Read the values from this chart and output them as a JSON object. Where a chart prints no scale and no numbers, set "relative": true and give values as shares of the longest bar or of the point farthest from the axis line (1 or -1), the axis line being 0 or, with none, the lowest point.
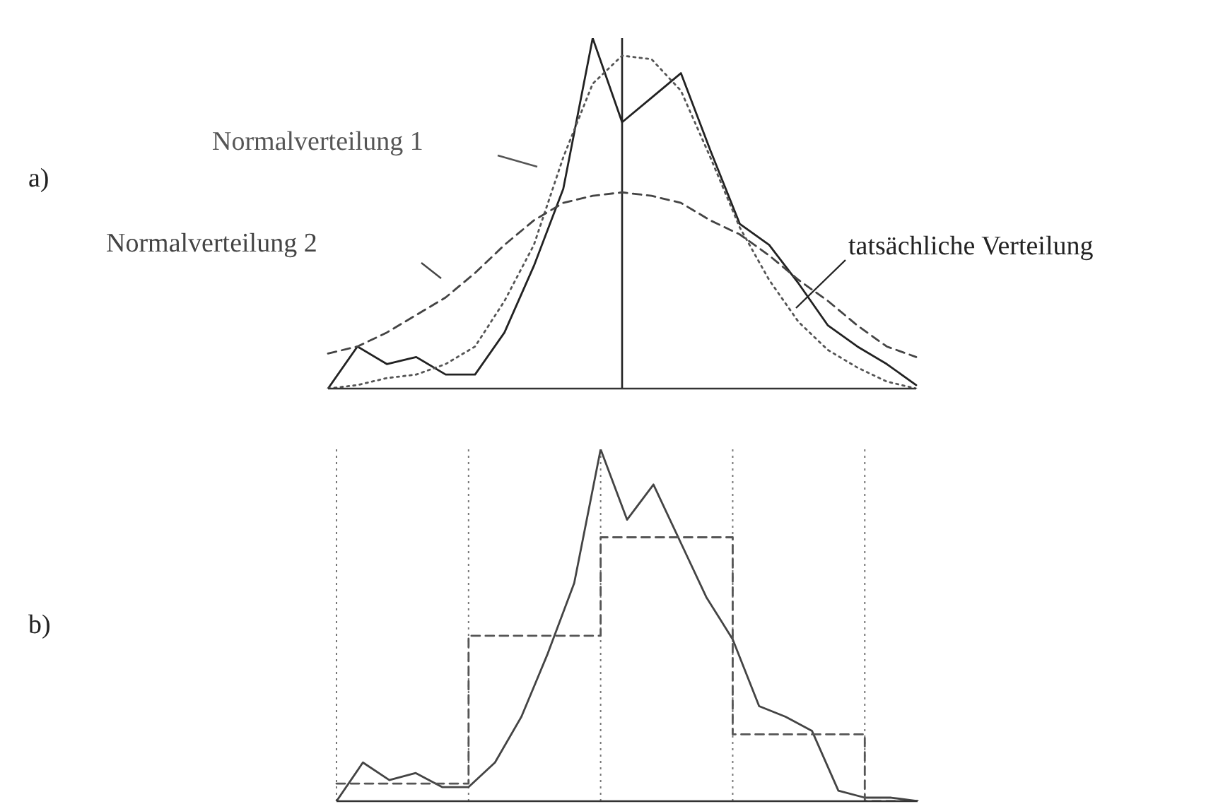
{
  "chart_data": [
    {
      "type": "line",
      "annotations": [
        "a)"
      ],
      "relative": true,
      "legend": false,
      "grid": false,
      "marker": "none",
      "categories": [
        null,
        null,
        null,
        null,
        null,
        null,
        null,
        null,
        null,
        null,
        null,
        null,
        null,
        null,
        null,
        null,
        null,
        null,
        null,
        null,
        null
      ],
      "series": [
        {
          "name": "tatsächliche Verteilung",
          "color": "#222222",
          "line_style": "solid",
          "values": [
            0,
            0.12,
            0.07,
            0.09,
            0.04,
            0.04,
            0.16,
            0.35,
            0.57,
            1,
            0.76,
            0.83,
            0.9,
            0.68,
            0.47,
            0.41,
            0.3,
            0.18,
            0.12,
            0.07,
            0.01
          ]
        },
        {
          "name": "Normalverteilung 1",
          "color": "#555555",
          "line_style": "dotted",
          "values": [
            0,
            0.01,
            0.03,
            0.04,
            0.07,
            0.12,
            0.25,
            0.41,
            0.66,
            0.87,
            0.95,
            0.94,
            0.85,
            0.66,
            0.46,
            0.31,
            0.19,
            0.11,
            0.06,
            0.02,
            0
          ]
        },
        {
          "name": "Normalverteilung 2",
          "color": "#444444",
          "line_style": "dashed",
          "values": [
            0.1,
            0.12,
            0.16,
            0.21,
            0.26,
            0.33,
            0.41,
            0.48,
            0.53,
            0.55,
            0.56,
            0.55,
            0.53,
            0.48,
            0.44,
            0.38,
            0.31,
            0.25,
            0.18,
            0.12,
            0.09
          ]
        }
      ]
    },
    {
      "type": "line",
      "annotations": [
        "b)"
      ],
      "relative": true,
      "legend": false,
      "grid": "x",
      "marker": "none",
      "categories": [
        null,
        null,
        null,
        null,
        null,
        null,
        null,
        null,
        null,
        null,
        null,
        null,
        null,
        null,
        null,
        null,
        null,
        null,
        null,
        null,
        null,
        null,
        null
      ],
      "series": [
        {
          "color": "#444444",
          "line_style": "solid",
          "values": [
            0,
            0.11,
            0.06,
            0.08,
            0.04,
            0.04,
            0.11,
            0.24,
            0.42,
            0.62,
            1,
            0.8,
            0.9,
            0.74,
            0.58,
            0.46,
            0.27,
            0.24,
            0.2,
            0.03,
            0.01,
            0.01,
            0
          ]
        },
        {
          "type": "step",
          "color": "#555555",
          "line_style": "dashed",
          "values": [
            0.05,
            0.05,
            0.05,
            0.05,
            0.05,
            0.47,
            0.47,
            0.47,
            0.47,
            0.47,
            0.75,
            0.75,
            0.75,
            0.75,
            0.75,
            0.19,
            0.19,
            0.19,
            0.19,
            0.19,
            0,
            0,
            0
          ]
        }
      ]
    }
  ]
}
